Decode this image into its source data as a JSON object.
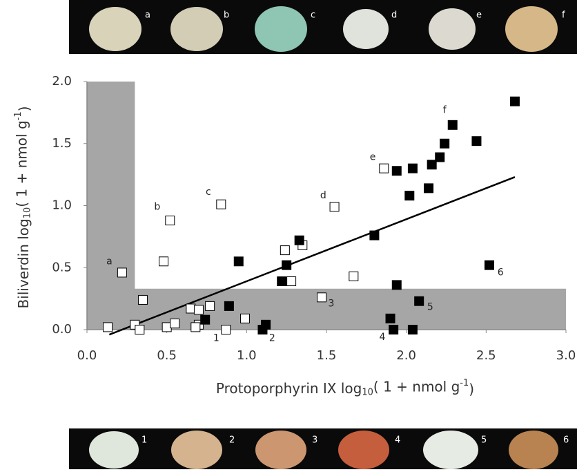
{
  "chart_data": {
    "type": "scatter",
    "xlabel": [
      "Protoporphyrin IX log",
      "10",
      "( 1 + nmol  g",
      "-1",
      ")"
    ],
    "ylabel": [
      "Biliverdin log",
      "10",
      "( 1 + nmol g",
      "-1",
      ")"
    ],
    "xlim": [
      0,
      3
    ],
    "ylim": [
      0,
      2
    ],
    "xticks": [
      {
        "value": 0,
        "label": "0.0"
      },
      0.5,
      {
        "value": 1,
        "label": "1.0"
      },
      1.5,
      {
        "value": 2,
        "label": "2.0"
      },
      2.5,
      {
        "value": 3,
        "label": "3.0"
      }
    ],
    "yticks": [
      {
        "value": 0,
        "label": "0.0"
      },
      0.5,
      {
        "value": 1,
        "label": "1.0"
      },
      1.5,
      {
        "value": 2,
        "label": "2.0"
      }
    ],
    "shaded_regions": [
      {
        "x": [
          0,
          0.3
        ],
        "y": [
          0,
          2
        ]
      },
      {
        "x": [
          0,
          3
        ],
        "y": [
          0,
          0.33
        ]
      }
    ],
    "shade_color": "#a6a6a6",
    "series": [
      {
        "color": "#000000",
        "fill": "#ffffff",
        "x": [
          0.13,
          0.3,
          0.33,
          0.35,
          0.22,
          0.48,
          0.52,
          0.84,
          1.55,
          1.86,
          0.5,
          0.55,
          0.65,
          0.7,
          0.7,
          0.68,
          0.77,
          0.87,
          0.99,
          1.24,
          1.35,
          1.28,
          1.47,
          1.67
        ],
        "values": [
          0.02,
          0.04,
          0.0,
          0.24,
          0.46,
          0.55,
          0.88,
          1.01,
          0.99,
          1.3,
          0.02,
          0.05,
          0.17,
          0.16,
          0.04,
          0.02,
          0.19,
          0.0,
          0.09,
          0.64,
          0.68,
          0.39,
          0.26,
          0.43
        ]
      },
      {
        "color": "#000000",
        "fill": "#000000",
        "x": [
          0.74,
          0.89,
          0.95,
          1.12,
          1.1,
          1.22,
          1.25,
          1.33,
          1.8,
          1.9,
          1.92,
          1.94,
          1.94,
          2.04,
          2.04,
          2.02,
          2.08,
          2.14,
          2.16,
          2.21,
          2.24,
          2.29,
          2.44,
          2.52,
          2.68
        ],
        "values": [
          0.08,
          0.19,
          0.55,
          0.04,
          0.0,
          0.39,
          0.52,
          0.72,
          0.76,
          0.09,
          0.0,
          0.36,
          1.28,
          1.3,
          0.0,
          1.08,
          0.23,
          1.14,
          1.33,
          1.39,
          1.5,
          1.65,
          1.52,
          0.52,
          1.84
        ]
      }
    ],
    "trend_line": {
      "x": [
        0.14,
        2.68
      ],
      "y": [
        -0.04,
        1.23
      ]
    },
    "annotations": [
      {
        "text": "a",
        "x": 0.14,
        "y": 0.55
      },
      {
        "text": "b",
        "x": 0.44,
        "y": 0.99
      },
      {
        "text": "c",
        "x": 0.76,
        "y": 1.11
      },
      {
        "text": "d",
        "x": 1.48,
        "y": 1.08
      },
      {
        "text": "e",
        "x": 1.79,
        "y": 1.39
      },
      {
        "text": "f",
        "x": 2.24,
        "y": 1.77
      },
      {
        "text": "1",
        "x": 0.81,
        "y": -0.07
      },
      {
        "text": "2",
        "x": 1.16,
        "y": -0.07
      },
      {
        "text": "3",
        "x": 1.53,
        "y": 0.21
      },
      {
        "text": "4",
        "x": 1.85,
        "y": -0.06
      },
      {
        "text": "5",
        "x": 2.15,
        "y": 0.18
      },
      {
        "text": "6",
        "x": 2.59,
        "y": 0.46
      }
    ]
  },
  "photos": {
    "top": [
      "a",
      "b",
      "c",
      "d",
      "e",
      "f"
    ],
    "bottom": [
      "1",
      "2",
      "3",
      "4",
      "5",
      "6"
    ]
  }
}
